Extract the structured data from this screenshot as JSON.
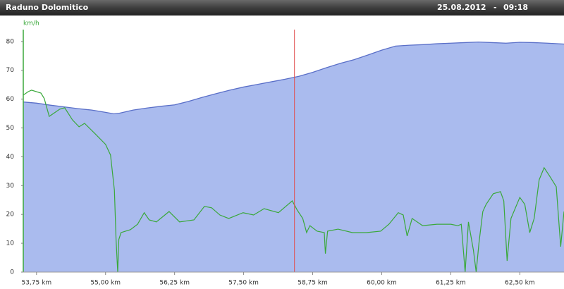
{
  "header": {
    "title": "Raduno Dolomitico",
    "date": "25.08.2012",
    "separator": "-",
    "time": "09:18"
  },
  "chart_data": {
    "type": "area_line",
    "y_unit": "km/h",
    "xlim": [
      53.51,
      63.3
    ],
    "ylim": [
      0,
      89
    ],
    "yticks": [
      0,
      10,
      20,
      30,
      40,
      50,
      60,
      70,
      80
    ],
    "xticks": [
      {
        "value": 53.75,
        "label": "53,75 km"
      },
      {
        "value": 55.0,
        "label": "55,00 km"
      },
      {
        "value": 56.25,
        "label": "56,25 km"
      },
      {
        "value": 57.5,
        "label": "57,50 km"
      },
      {
        "value": 58.75,
        "label": "58,75 km"
      },
      {
        "value": 60.0,
        "label": "60,00 km"
      },
      {
        "value": 61.25,
        "label": "61,25 km"
      },
      {
        "value": 62.5,
        "label": "62,50 km"
      }
    ],
    "grid": false,
    "cursor_x": 58.42,
    "cursor_color": "#e05050",
    "series": [
      {
        "kind": "area",
        "color": "#5a6fc8",
        "fill": "#aabbee",
        "x": [
          53.51,
          53.75,
          54.0,
          54.25,
          54.5,
          54.75,
          55.0,
          55.15,
          55.25,
          55.5,
          55.75,
          56.0,
          56.25,
          56.5,
          56.75,
          57.0,
          57.25,
          57.5,
          57.75,
          58.0,
          58.25,
          58.5,
          58.75,
          59.0,
          59.25,
          59.5,
          59.75,
          60.0,
          60.25,
          60.5,
          60.75,
          61.0,
          61.25,
          61.5,
          61.75,
          62.0,
          62.25,
          62.5,
          62.75,
          63.0,
          63.3
        ],
        "values": [
          59.0,
          58.6,
          57.9,
          57.3,
          56.7,
          56.2,
          55.4,
          54.9,
          55.1,
          56.2,
          56.9,
          57.5,
          58.0,
          59.2,
          60.6,
          61.9,
          63.1,
          64.2,
          65.1,
          66.0,
          66.9,
          67.9,
          69.3,
          70.9,
          72.4,
          73.7,
          75.3,
          77.0,
          78.4,
          78.7,
          78.9,
          79.2,
          79.4,
          79.6,
          79.8,
          79.6,
          79.4,
          79.7,
          79.6,
          79.4,
          79.1
        ]
      },
      {
        "kind": "line",
        "color": "#3aa83a",
        "x": [
          53.51,
          53.6,
          53.66,
          53.83,
          53.89,
          53.98,
          54.17,
          54.26,
          54.4,
          54.52,
          54.62,
          54.81,
          55.0,
          55.09,
          55.16,
          55.19,
          55.22,
          55.24,
          55.28,
          55.45,
          55.58,
          55.7,
          55.79,
          55.92,
          56.15,
          56.34,
          56.6,
          56.79,
          56.92,
          57.07,
          57.23,
          57.49,
          57.68,
          57.87,
          58.13,
          58.38,
          58.47,
          58.57,
          58.64,
          58.7,
          58.83,
          58.96,
          58.98,
          59.02,
          59.21,
          59.47,
          59.72,
          59.98,
          60.13,
          60.3,
          60.39,
          60.46,
          60.55,
          60.74,
          61.0,
          61.25,
          61.38,
          61.44,
          61.51,
          61.57,
          61.66,
          61.71,
          61.76,
          61.83,
          61.89,
          62.02,
          62.15,
          62.21,
          62.27,
          62.34,
          62.5,
          62.59,
          62.68,
          62.76,
          62.85,
          62.94,
          63.04,
          63.16,
          63.24,
          63.3
        ],
        "values": [
          61.4,
          62.6,
          63.1,
          62.1,
          60.2,
          54.0,
          56.5,
          57.0,
          52.8,
          50.4,
          51.6,
          48.0,
          44.3,
          40.6,
          28.4,
          11.3,
          0,
          11.3,
          13.7,
          14.7,
          16.6,
          20.6,
          18.1,
          17.4,
          21.0,
          17.4,
          18.1,
          22.8,
          22.3,
          19.8,
          18.6,
          20.6,
          19.8,
          22.0,
          20.6,
          24.7,
          21.5,
          18.6,
          13.7,
          16.1,
          14.2,
          13.7,
          6.4,
          14.2,
          14.9,
          13.7,
          13.7,
          14.2,
          16.6,
          20.6,
          19.8,
          12.5,
          18.6,
          16.1,
          16.6,
          16.6,
          16.1,
          16.6,
          0,
          17.4,
          7.6,
          0,
          10.0,
          21.0,
          23.5,
          27.2,
          27.9,
          24.7,
          3.9,
          18.6,
          25.9,
          23.5,
          13.7,
          18.6,
          32.0,
          36.2,
          33.3,
          29.6,
          8.8,
          21.0
        ]
      }
    ]
  }
}
